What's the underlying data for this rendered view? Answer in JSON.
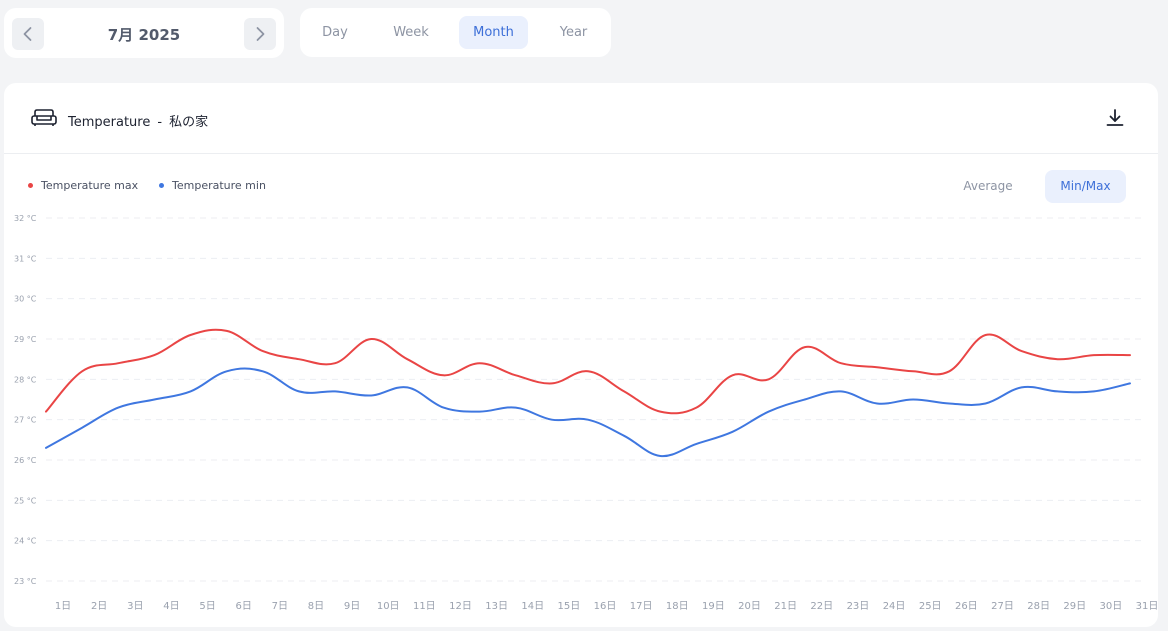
{
  "date_nav": {
    "label": "7月 2025",
    "prev_icon": "chevron-left-icon",
    "next_icon": "chevron-right-icon"
  },
  "period_tabs": [
    {
      "label": "Day",
      "active": false
    },
    {
      "label": "Week",
      "active": false
    },
    {
      "label": "Month",
      "active": true
    },
    {
      "label": "Year",
      "active": false
    }
  ],
  "chart_card": {
    "icon": "sofa-icon",
    "title": "Temperature",
    "separator": "-",
    "location": "私の家",
    "download_icon": "download-icon",
    "modes": [
      {
        "label": "Average",
        "active": false
      },
      {
        "label": "Min/Max",
        "active": true
      }
    ]
  },
  "colors": {
    "max": "#e94545",
    "min": "#3f77e0",
    "accent": "#3d6fd8",
    "accent_bg": "#eaf0fd"
  },
  "chart_data": {
    "type": "line",
    "xlabel": "",
    "ylabel": "",
    "y_unit": "°C",
    "ylim": [
      23,
      32
    ],
    "yticks": [
      "32 °C",
      "31 °C",
      "30 °C",
      "29 °C",
      "28 °C",
      "27 °C",
      "26 °C",
      "25 °C",
      "24 °C",
      "23 °C"
    ],
    "grid": "horizontal-dashed",
    "legend": "top-left",
    "categories": [
      "1日",
      "2日",
      "3日",
      "4日",
      "5日",
      "6日",
      "7日",
      "8日",
      "9日",
      "10日",
      "11日",
      "12日",
      "13日",
      "14日",
      "15日",
      "16日",
      "17日",
      "18日",
      "19日",
      "20日",
      "21日",
      "22日",
      "23日",
      "24日",
      "25日",
      "26日",
      "27日",
      "28日",
      "29日",
      "30日",
      "31日"
    ],
    "series": [
      {
        "name": "Temperature max",
        "color": "#e94545",
        "values": [
          27.2,
          28.2,
          28.4,
          28.6,
          29.1,
          29.2,
          28.7,
          28.5,
          28.4,
          29.0,
          28.5,
          28.1,
          28.4,
          28.1,
          27.9,
          28.2,
          27.7,
          27.2,
          27.3,
          28.1,
          28.0,
          28.8,
          28.4,
          28.3,
          28.2,
          28.2,
          29.1,
          28.7,
          28.5,
          28.6,
          28.6
        ]
      },
      {
        "name": "Temperature min",
        "color": "#3f77e0",
        "values": [
          26.3,
          26.8,
          27.3,
          27.5,
          27.7,
          28.2,
          28.2,
          27.7,
          27.7,
          27.6,
          27.8,
          27.3,
          27.2,
          27.3,
          27.0,
          27.0,
          26.6,
          26.1,
          26.4,
          26.7,
          27.2,
          27.5,
          27.7,
          27.4,
          27.5,
          27.4,
          27.4,
          27.8,
          27.7,
          27.7,
          27.9
        ]
      }
    ]
  }
}
